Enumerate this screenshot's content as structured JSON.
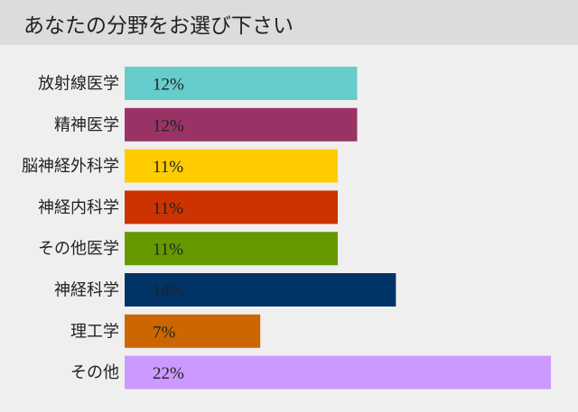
{
  "header": {
    "title": "あなたの分野をお選び下さい"
  },
  "chart_data": {
    "type": "bar",
    "orientation": "horizontal",
    "categories": [
      "放射線医学",
      "精神医学",
      "脳神経外科学",
      "神経内科学",
      "その他医学",
      "神経科学",
      "理工学",
      "その他"
    ],
    "values": [
      12,
      12,
      11,
      11,
      11,
      14,
      7,
      22
    ],
    "value_labels": [
      "12%",
      "12%",
      "11%",
      "11%",
      "11%",
      "14%",
      "7%",
      "22%"
    ],
    "colors": [
      "#66cccc",
      "#993366",
      "#ffcc00",
      "#cc3300",
      "#669900",
      "#003366",
      "#cc6600",
      "#cc99ff"
    ],
    "xlim": [
      0,
      22
    ],
    "grid": false,
    "legend": "none"
  }
}
